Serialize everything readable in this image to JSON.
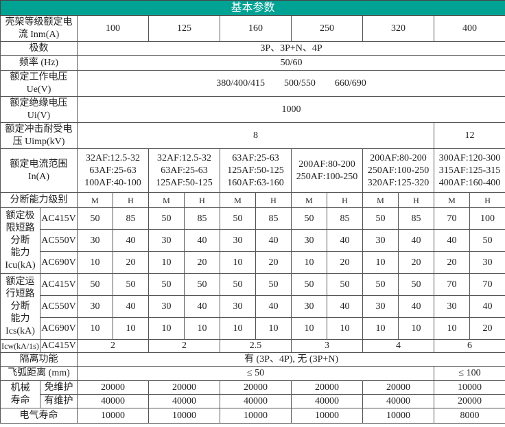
{
  "title": "基本参数",
  "frame_current": {
    "label": "壳架等级额定电\n流 Inm(A)",
    "values": [
      "100",
      "125",
      "160",
      "250",
      "320",
      "400"
    ]
  },
  "poles": {
    "label": "极数",
    "value": "3P、3P+N、4P"
  },
  "frequency": {
    "label": "频率 (Hz)",
    "value": "50/60"
  },
  "ue": {
    "label": "额定工作电压\nUe(V)",
    "values": [
      "380/400/415",
      "500/550",
      "660/690"
    ]
  },
  "ui": {
    "label": "额定绝缘电压\nUi(V)",
    "value": "1000"
  },
  "uimp": {
    "label": "额定冲击耐受电\n压 Uimp(kV)",
    "values": [
      "8",
      "12"
    ]
  },
  "in_range": {
    "label": "额定电流范围\nIn(A)",
    "values": [
      "32AF:12.5-32\n63AF:25-63\n100AF:40-100",
      "32AF:12.5-32\n63AF:25-63\n125AF:50-125",
      "63AF:25-63\n125AF:50-125\n160AF:63-160",
      "200AF:80-200\n250AF:100-250",
      "200AF:80-200\n250AF:100-250\n320AF:125-320",
      "300AF:120-300\n315AF:125-315\n400AF:160-400"
    ]
  },
  "breaking_level": {
    "label": "分断能力级别",
    "values": [
      "M",
      "H"
    ]
  },
  "icu": {
    "label": "额定极\n限短路\n分断\n能力\nIcu(kA)",
    "rows": [
      {
        "voltage": "AC415V",
        "values": [
          "50",
          "85",
          "50",
          "85",
          "50",
          "85",
          "50",
          "85",
          "50",
          "85",
          "70",
          "100"
        ]
      },
      {
        "voltage": "AC550V",
        "values": [
          "30",
          "40",
          "30",
          "40",
          "30",
          "40",
          "30",
          "40",
          "30",
          "40",
          "40",
          "50"
        ]
      },
      {
        "voltage": "AC690V",
        "values": [
          "10",
          "20",
          "10",
          "20",
          "10",
          "20",
          "10",
          "20",
          "10",
          "20",
          "20",
          "30"
        ]
      }
    ]
  },
  "ics": {
    "label": "额定运\n行短路\n分断\n能力\nIcs(kA)",
    "rows": [
      {
        "voltage": "AC415V",
        "values": [
          "50",
          "50",
          "50",
          "50",
          "50",
          "50",
          "50",
          "50",
          "50",
          "50",
          "70",
          "70"
        ]
      },
      {
        "voltage": "AC550V",
        "values": [
          "30",
          "40",
          "30",
          "40",
          "30",
          "40",
          "30",
          "40",
          "30",
          "40",
          "30",
          "40"
        ]
      },
      {
        "voltage": "AC690V",
        "values": [
          "10",
          "10",
          "10",
          "10",
          "10",
          "10",
          "10",
          "10",
          "10",
          "10",
          "10",
          "20"
        ]
      }
    ]
  },
  "icw": {
    "label": "Icw(kA/1s)",
    "voltage": "AC415V",
    "values": [
      "2",
      "2",
      "2.5",
      "3",
      "4",
      "6"
    ]
  },
  "isolation": {
    "label": "隔离功能",
    "value": "有 (3P、4P), 无 (3P+N)"
  },
  "arc": {
    "label": "飞弧距离 (mm)",
    "values": [
      "≤ 50",
      "≤ 100"
    ]
  },
  "mech": {
    "label": "机械\n寿命",
    "rows": [
      {
        "label": "免维护",
        "values": [
          "20000",
          "20000",
          "20000",
          "20000",
          "20000",
          "10000"
        ]
      },
      {
        "label": "有维护",
        "values": [
          "40000",
          "40000",
          "40000",
          "40000",
          "40000",
          "20000"
        ]
      }
    ]
  },
  "elec": {
    "label": "电气寿命",
    "values": [
      "10000",
      "10000",
      "10000",
      "10000",
      "10000",
      "8000"
    ]
  },
  "colors": {
    "header_bg": "#00a294",
    "header_text": "#ffffff",
    "border": "#555555"
  }
}
